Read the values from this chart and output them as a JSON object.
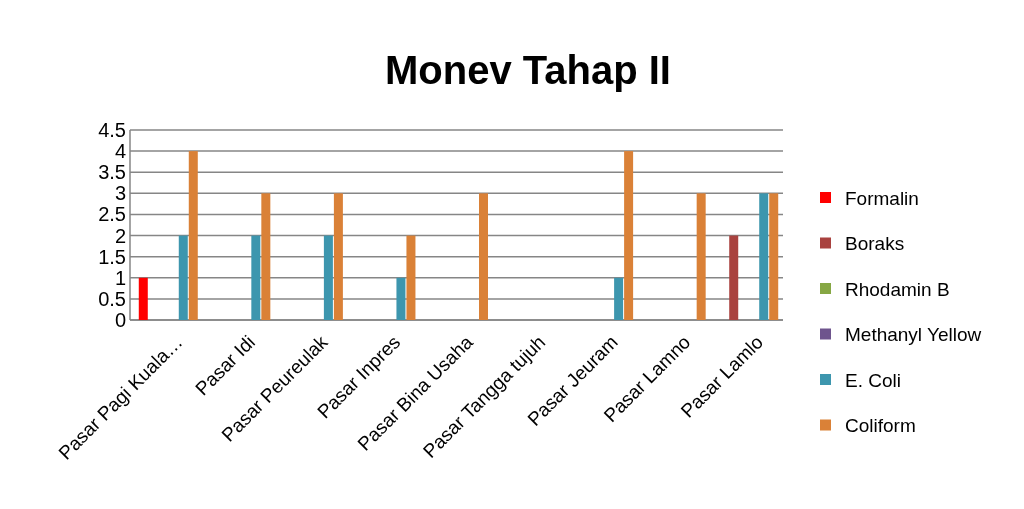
{
  "chart_data": {
    "type": "bar",
    "title": "Monev Tahap II",
    "categories": [
      "Pasar Pagi Kuala…",
      "Pasar Idi",
      "Pasar Peureulak",
      "Pasar Inpres",
      "Pasar Bina Usaha",
      "Pasar Tangga tujuh",
      "Pasar Jeuram",
      "Pasar Lamno",
      "Pasar Lamlo"
    ],
    "series": [
      {
        "name": "Formalin",
        "color": "#ff0000",
        "values": [
          1,
          0,
          0,
          0,
          0,
          0,
          0,
          0,
          0
        ]
      },
      {
        "name": "Boraks",
        "color": "#a9423f",
        "values": [
          0,
          0,
          0,
          0,
          0,
          0,
          0,
          0,
          2
        ]
      },
      {
        "name": "Rhodamin B",
        "color": "#86a744",
        "values": [
          0,
          0,
          0,
          0,
          0,
          0,
          0,
          0,
          0
        ]
      },
      {
        "name": "Methanyl Yellow",
        "color": "#6e548d",
        "values": [
          0,
          0,
          0,
          0,
          0,
          0,
          0,
          0,
          0
        ]
      },
      {
        "name": "E. Coli",
        "color": "#3d96ae",
        "values": [
          2,
          2,
          2,
          1,
          0,
          0,
          1,
          0,
          3
        ]
      },
      {
        "name": "Coliform",
        "color": "#da8137",
        "values": [
          4,
          3,
          3,
          2,
          3,
          0,
          4,
          3,
          3
        ]
      }
    ],
    "ylim": [
      0,
      4.5
    ],
    "yticks": [
      0,
      0.5,
      1,
      1.5,
      2,
      2.5,
      3,
      3.5,
      4,
      4.5
    ],
    "grid": "y",
    "legend": "right"
  }
}
